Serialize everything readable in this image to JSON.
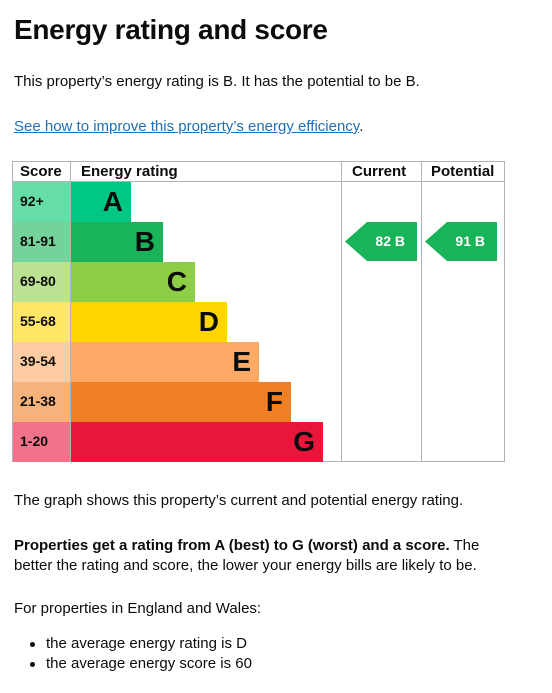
{
  "page": {
    "title": "Energy rating and score",
    "intro": "This property’s energy rating is B. It has the potential to be B.",
    "link_text": "See how to improve this property’s energy efficiency",
    "link_suffix": "."
  },
  "chart_data": {
    "type": "bar",
    "headers": {
      "score": "Score",
      "rating": "Energy rating",
      "current": "Current",
      "potential": "Potential"
    },
    "bands": [
      {
        "score": "92+",
        "letter": "A",
        "color": "#00c781",
        "score_bg": "#66dda7",
        "relative_length": 1
      },
      {
        "score": "81-91",
        "letter": "B",
        "color": "#19b459",
        "score_bg": "#75d29b",
        "relative_length": 2
      },
      {
        "score": "69-80",
        "letter": "C",
        "color": "#8dce46",
        "score_bg": "#bbe290",
        "relative_length": 3
      },
      {
        "score": "55-68",
        "letter": "D",
        "color": "#ffd500",
        "score_bg": "#ffe666",
        "relative_length": 4
      },
      {
        "score": "39-54",
        "letter": "E",
        "color": "#fcaa65",
        "score_bg": "#fdcca3",
        "relative_length": 5
      },
      {
        "score": "21-38",
        "letter": "F",
        "color": "#ef8023",
        "score_bg": "#f5b37b",
        "relative_length": 6
      },
      {
        "score": "1-20",
        "letter": "G",
        "color": "#e9153b",
        "score_bg": "#f27389",
        "relative_length": 7
      }
    ],
    "current": {
      "score": 82,
      "band": "B",
      "label": "82 B",
      "color": "#19b459"
    },
    "potential": {
      "score": 91,
      "band": "B",
      "label": "91 B",
      "color": "#19b459"
    }
  },
  "text": {
    "graph_note": "The graph shows this property’s current and potential energy rating.",
    "ratings_bold": "Properties get a rating from A (best) to G (worst) and a score.",
    "ratings_rest": " The better the rating and score, the lower your energy bills are likely to be.",
    "england_wales": "For properties in England and Wales:",
    "bullets": [
      "the average energy rating is D",
      "the average energy score is 60"
    ]
  }
}
